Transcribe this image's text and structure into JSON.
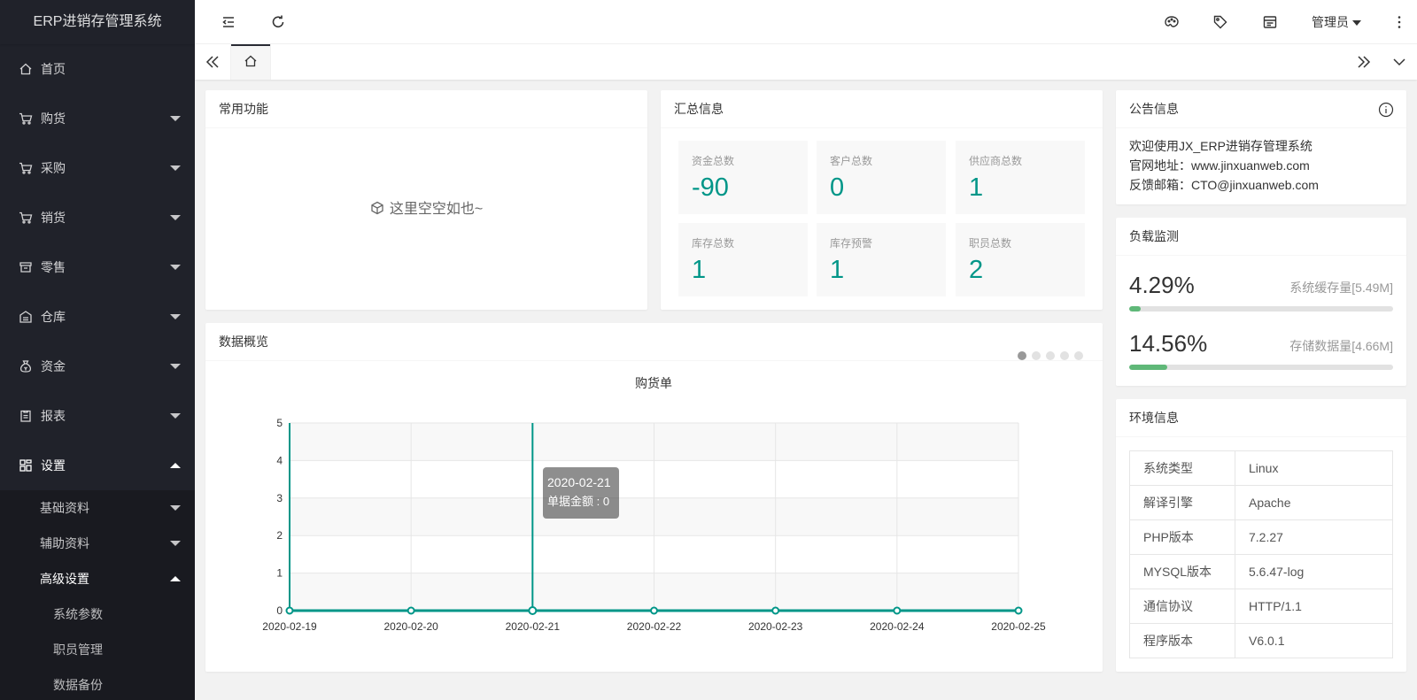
{
  "app": {
    "title": "ERP进销存管理系统"
  },
  "sidebar": {
    "items": [
      {
        "label": "首页",
        "icon": "home-icon",
        "has_children": false
      },
      {
        "label": "购货",
        "icon": "cart-icon",
        "has_children": true
      },
      {
        "label": "采购",
        "icon": "cart-icon",
        "has_children": true
      },
      {
        "label": "销货",
        "icon": "cart-icon",
        "has_children": true
      },
      {
        "label": "零售",
        "icon": "shop-icon",
        "has_children": true
      },
      {
        "label": "仓库",
        "icon": "warehouse-icon",
        "has_children": true
      },
      {
        "label": "资金",
        "icon": "money-bag-icon",
        "has_children": true
      },
      {
        "label": "报表",
        "icon": "report-icon",
        "has_children": true
      },
      {
        "label": "设置",
        "icon": "grid-icon",
        "has_children": true,
        "open": true
      }
    ],
    "settings_children": [
      {
        "label": "基础资料"
      },
      {
        "label": "辅助资料"
      },
      {
        "label": "高级设置",
        "open": true
      }
    ],
    "advanced_children": [
      {
        "label": "系统参数"
      },
      {
        "label": "职员管理"
      },
      {
        "label": "数据备份"
      }
    ]
  },
  "header": {
    "left_icons": [
      "menu-fold-icon",
      "refresh-icon"
    ],
    "right_icons": [
      "theme-palette-icon",
      "tag-icon",
      "note-icon"
    ],
    "user": "管理员",
    "more_icon": "more-vertical-icon"
  },
  "tabs": {
    "home_icon": "home-icon"
  },
  "common": {
    "title": "常用功能",
    "empty_text": "这里空空如也~"
  },
  "summary": {
    "title": "汇总信息",
    "stats": [
      {
        "label": "资金总数",
        "value": "-90"
      },
      {
        "label": "客户总数",
        "value": "0"
      },
      {
        "label": "供应商总数",
        "value": "1"
      },
      {
        "label": "库存总数",
        "value": "1"
      },
      {
        "label": "库存预警",
        "value": "1"
      },
      {
        "label": "职员总数",
        "value": "2"
      }
    ]
  },
  "notice": {
    "title": "公告信息",
    "lines": [
      "欢迎使用JX_ERP进销存管理系统",
      "官网地址：www.jinxuanweb.com",
      "反馈邮箱：CTO@jinxuanweb.com"
    ]
  },
  "load": {
    "title": "负载监测",
    "rows": [
      {
        "percent": "4.29%",
        "label": "系统缓存量[5.49M]",
        "fill": 0.0429
      },
      {
        "percent": "14.56%",
        "label": "存储数据量[4.66M]",
        "fill": 0.1456
      }
    ]
  },
  "env": {
    "title": "环境信息",
    "rows": [
      {
        "key": "系统类型",
        "value": "Linux"
      },
      {
        "key": "解译引擎",
        "value": "Apache"
      },
      {
        "key": "PHP版本",
        "value": "7.2.27"
      },
      {
        "key": "MYSQL版本",
        "value": "5.6.47-log"
      },
      {
        "key": "通信协议",
        "value": "HTTP/1.1"
      },
      {
        "key": "程序版本",
        "value": "V6.0.1"
      }
    ]
  },
  "overview": {
    "title": "数据概览",
    "pager_count": 5,
    "pager_active": 0
  },
  "chart_data": {
    "type": "line",
    "title": "购货单",
    "x": [
      "2020-02-19",
      "2020-02-20",
      "2020-02-21",
      "2020-02-22",
      "2020-02-23",
      "2020-02-24",
      "2020-02-25"
    ],
    "values": [
      0,
      0,
      0,
      0,
      0,
      0,
      0
    ],
    "yticks": [
      0,
      1,
      2,
      3,
      4,
      5
    ],
    "ylim": [
      0,
      5
    ],
    "color": "#009688",
    "grid": true,
    "tooltip": {
      "x": "2020-02-21",
      "label": "单据金额 : 0",
      "index": 2
    }
  },
  "colors": {
    "accent": "#009688",
    "sidebar": "#20222a",
    "progress": "#5fb878"
  }
}
